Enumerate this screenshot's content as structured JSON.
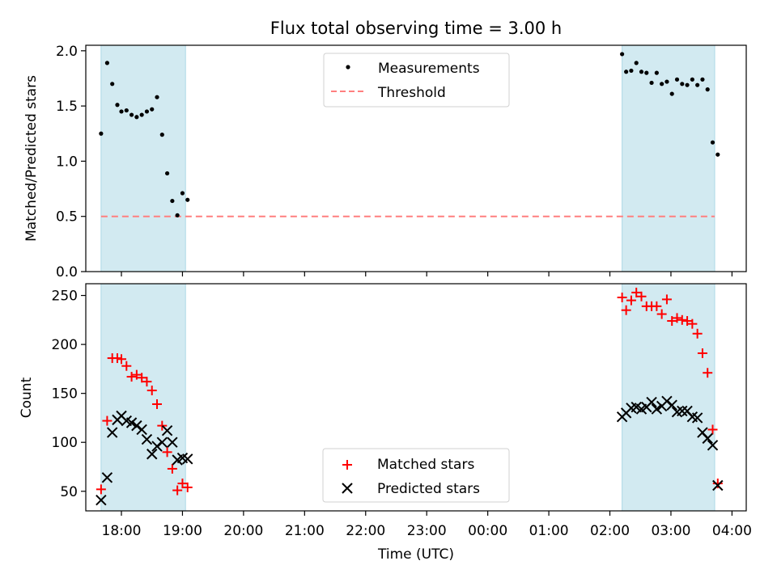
{
  "title": "Flux total observing time = 3.00 h",
  "colors": {
    "shade": "#add8e6",
    "threshold": "#ff7f7f",
    "matched": "#ff0000",
    "predicted": "#000000",
    "measurement": "#000000"
  },
  "chart_data": [
    {
      "type": "scatter",
      "ylabel": "Matched/Predicted stars",
      "ylim": [
        0,
        2.05
      ],
      "yticks": [
        0.0,
        0.5,
        1.0,
        1.5,
        2.0
      ],
      "ytick_labels": [
        "0.0",
        "0.5",
        "1.0",
        "1.5",
        "2.0"
      ],
      "legend": {
        "placement": "upper center",
        "entries": [
          "Measurements",
          "Threshold"
        ]
      },
      "threshold": {
        "name": "Threshold",
        "value": 0.5,
        "x": [
          "17:40",
          "03:43"
        ]
      },
      "shaded_spans": [
        [
          "17:40",
          "19:03"
        ],
        [
          "02:12",
          "03:43"
        ]
      ],
      "series": [
        {
          "name": "Measurements",
          "x": [
            "17:40",
            "17:46",
            "17:51",
            "17:56",
            "18:00",
            "18:05",
            "18:10",
            "18:15",
            "18:20",
            "18:25",
            "18:30",
            "18:35",
            "18:40",
            "18:45",
            "18:50",
            "18:55",
            "19:00",
            "19:05",
            "02:12",
            "02:16",
            "02:21",
            "02:26",
            "02:31",
            "02:36",
            "02:41",
            "02:46",
            "02:51",
            "02:56",
            "03:01",
            "03:06",
            "03:11",
            "03:16",
            "03:21",
            "03:26",
            "03:31",
            "03:36",
            "03:41",
            "03:46"
          ],
          "y": [
            1.25,
            1.89,
            1.7,
            1.51,
            1.45,
            1.46,
            1.42,
            1.4,
            1.42,
            1.45,
            1.47,
            1.58,
            1.24,
            0.89,
            0.64,
            0.51,
            0.71,
            0.65,
            1.97,
            1.81,
            1.82,
            1.89,
            1.81,
            1.8,
            1.71,
            1.8,
            1.7,
            1.72,
            1.61,
            1.74,
            1.7,
            1.69,
            1.74,
            1.69,
            1.74,
            1.65,
            1.17,
            1.06
          ]
        }
      ]
    },
    {
      "type": "scatter",
      "xlabel": "Time (UTC)",
      "ylabel": "Count",
      "ylim": [
        30,
        262
      ],
      "yticks": [
        50,
        100,
        150,
        200,
        250
      ],
      "ytick_labels": [
        "50",
        "100",
        "150",
        "200",
        "250"
      ],
      "xticks": [
        "18:00",
        "19:00",
        "20:00",
        "21:00",
        "22:00",
        "23:00",
        "00:00",
        "01:00",
        "02:00",
        "03:00",
        "04:00"
      ],
      "legend": {
        "placement": "lower center",
        "entries": [
          "Matched stars",
          "Predicted stars"
        ]
      },
      "shaded_spans": [
        [
          "17:40",
          "19:03"
        ],
        [
          "02:12",
          "03:43"
        ]
      ],
      "series": [
        {
          "name": "Matched stars",
          "marker": "+",
          "x": [
            "17:40",
            "17:46",
            "17:51",
            "17:56",
            "18:00",
            "18:05",
            "18:10",
            "18:15",
            "18:20",
            "18:25",
            "18:30",
            "18:35",
            "18:40",
            "18:45",
            "18:50",
            "18:55",
            "19:00",
            "19:05",
            "02:12",
            "02:16",
            "02:21",
            "02:26",
            "02:31",
            "02:36",
            "02:41",
            "02:46",
            "02:51",
            "02:56",
            "03:01",
            "03:06",
            "03:11",
            "03:16",
            "03:21",
            "03:26",
            "03:31",
            "03:36",
            "03:41",
            "03:46"
          ],
          "y": [
            52,
            122,
            186,
            186,
            185,
            178,
            167,
            169,
            166,
            162,
            153,
            139,
            117,
            90,
            73,
            51,
            58,
            54,
            248,
            235,
            245,
            253,
            249,
            239,
            239,
            239,
            231,
            246,
            224,
            227,
            225,
            224,
            221,
            211,
            191,
            171,
            113,
            58
          ]
        },
        {
          "name": "Predicted stars",
          "marker": "x",
          "x": [
            "17:40",
            "17:46",
            "17:51",
            "17:56",
            "18:00",
            "18:05",
            "18:10",
            "18:15",
            "18:20",
            "18:25",
            "18:30",
            "18:35",
            "18:40",
            "18:45",
            "18:50",
            "18:55",
            "19:00",
            "19:05",
            "02:12",
            "02:16",
            "02:21",
            "02:26",
            "02:31",
            "02:36",
            "02:41",
            "02:46",
            "02:51",
            "02:56",
            "03:01",
            "03:06",
            "03:11",
            "03:16",
            "03:21",
            "03:26",
            "03:31",
            "03:36",
            "03:41",
            "03:46"
          ],
          "y": [
            41,
            64,
            110,
            123,
            127,
            122,
            120,
            117,
            113,
            103,
            88,
            96,
            100,
            112,
            100,
            82,
            84,
            83,
            126,
            130,
            135,
            136,
            134,
            136,
            141,
            134,
            137,
            142,
            138,
            131,
            132,
            132,
            126,
            125,
            110,
            104,
            97,
            56
          ]
        }
      ]
    }
  ]
}
